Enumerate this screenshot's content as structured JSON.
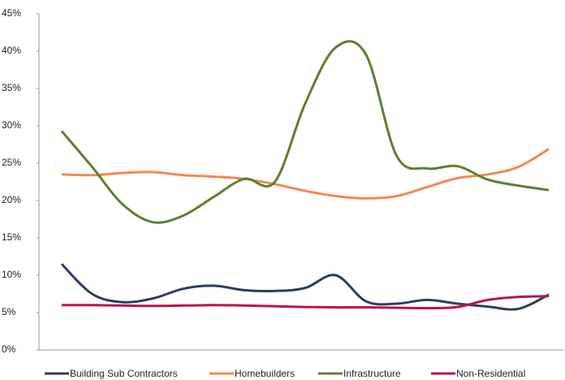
{
  "chart_data": {
    "type": "line",
    "categories": [
      null,
      null,
      null,
      null,
      null,
      null,
      null,
      null,
      null,
      null,
      null,
      null,
      null,
      null,
      null,
      null,
      null
    ],
    "series": [
      {
        "name": "Building Sub Contractors",
        "color": "#2f3e5e",
        "values": [
          11.5,
          7.5,
          6.4,
          6.9,
          8.2,
          8.6,
          8,
          7.9,
          8.3,
          10,
          6.5,
          6.2,
          6.7,
          6.2,
          5.8,
          5.5,
          7.4
        ]
      },
      {
        "name": "Homebuilders",
        "color": "#f28a4e",
        "values": [
          23.5,
          23.4,
          23.7,
          23.8,
          23.4,
          23.2,
          22.9,
          22.2,
          21.3,
          20.6,
          20.3,
          20.6,
          21.8,
          23,
          23.5,
          24.5,
          26.9
        ]
      },
      {
        "name": "Infrastructure",
        "color": "#5e7f2f",
        "values": [
          29.3,
          24.5,
          19.5,
          17.1,
          18,
          20.5,
          22.9,
          22.5,
          33,
          40.5,
          39.5,
          26,
          24.3,
          24.6,
          22.8,
          22,
          21.4
        ]
      },
      {
        "name": "Non-Residential",
        "color": "#b5184b",
        "values": [
          6,
          6,
          5.95,
          5.9,
          5.95,
          6,
          5.95,
          5.85,
          5.75,
          5.7,
          5.7,
          5.65,
          5.6,
          5.75,
          6.7,
          7.1,
          7.2
        ]
      }
    ],
    "ylim": [
      0,
      45
    ],
    "yticks": [
      {
        "value": 0,
        "label": "0%"
      },
      {
        "value": 5,
        "label": "5%"
      },
      {
        "value": 10,
        "label": "10%"
      },
      {
        "value": 15,
        "label": "15%"
      },
      {
        "value": 20,
        "label": "20%"
      },
      {
        "value": 25,
        "label": "25%"
      },
      {
        "value": 30,
        "label": "30%"
      },
      {
        "value": 35,
        "label": "35%"
      },
      {
        "value": 40,
        "label": "40%"
      },
      {
        "value": 45,
        "label": "45%"
      }
    ],
    "legend": "bottom"
  }
}
